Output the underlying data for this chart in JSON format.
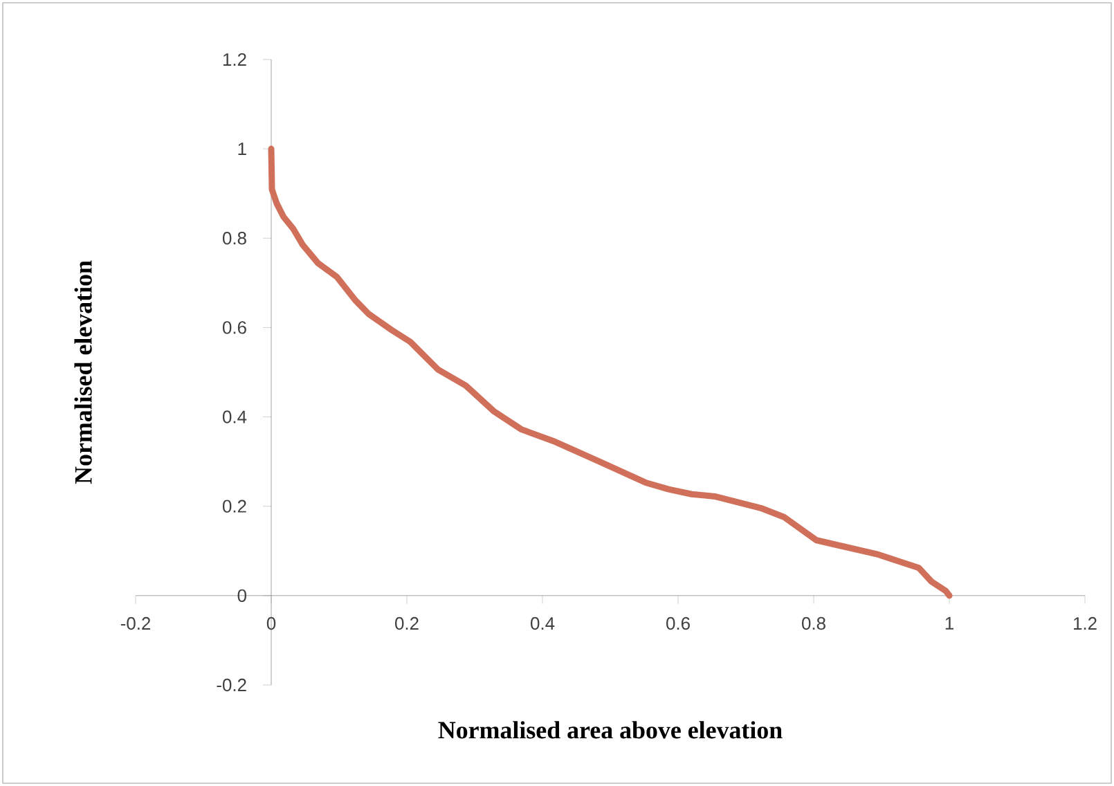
{
  "chart_data": {
    "type": "line",
    "xlabel": "Normalised area above elevation",
    "ylabel": "Normalised elevation",
    "xlim": [
      -0.2,
      1.2
    ],
    "ylim": [
      -0.2,
      1.2
    ],
    "xticks": [
      -0.2,
      0,
      0.2,
      0.4,
      0.6,
      0.8,
      1,
      1.2
    ],
    "yticks": [
      -0.2,
      0,
      0.2,
      0.4,
      0.6,
      0.8,
      1,
      1.2
    ],
    "grid": false,
    "legend": false,
    "marker": "none",
    "line_style": "solid",
    "series": [
      {
        "color": "#d0705a",
        "x": [
          0,
          0.001,
          0.008,
          0.018,
          0.032,
          0.046,
          0.069,
          0.097,
          0.124,
          0.144,
          0.178,
          0.205,
          0.246,
          0.287,
          0.328,
          0.369,
          0.416,
          0.484,
          0.552,
          0.586,
          0.62,
          0.654,
          0.722,
          0.756,
          0.804,
          0.838,
          0.893,
          0.955,
          0.974,
          0.995,
          1
        ],
        "values": [
          1,
          0.909,
          0.878,
          0.848,
          0.822,
          0.786,
          0.744,
          0.713,
          0.661,
          0.63,
          0.594,
          0.568,
          0.506,
          0.47,
          0.413,
          0.372,
          0.346,
          0.3,
          0.253,
          0.238,
          0.227,
          0.222,
          0.196,
          0.176,
          0.124,
          0.112,
          0.093,
          0.062,
          0.031,
          0.01,
          0
        ]
      }
    ]
  }
}
